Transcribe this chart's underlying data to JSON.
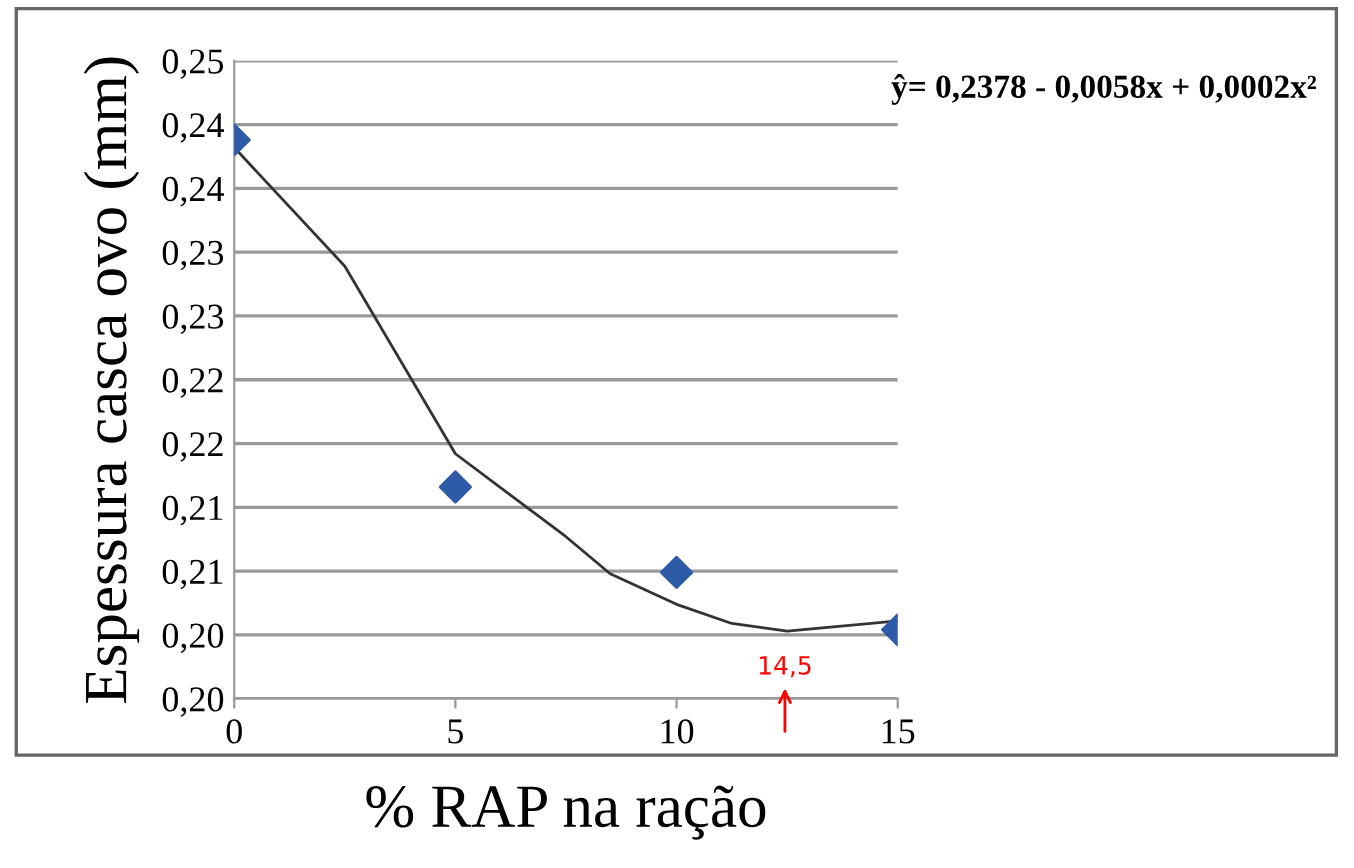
{
  "chart_data": {
    "type": "scatter",
    "xlabel": "% RAP na ração",
    "ylabel": "Espessura casca ovo (mm)",
    "xlim": [
      0,
      15
    ],
    "xticks": [
      0,
      5,
      10,
      15
    ],
    "ylim": [
      0.2,
      0.25
    ],
    "yticks": [
      {
        "value": 0.2,
        "label": "0,20"
      },
      {
        "value": 0.205,
        "label": "0,20"
      },
      {
        "value": 0.21,
        "label": "0,21"
      },
      {
        "value": 0.215,
        "label": "0,21"
      },
      {
        "value": 0.22,
        "label": "0,22"
      },
      {
        "value": 0.225,
        "label": "0,22"
      },
      {
        "value": 0.23,
        "label": "0,23"
      },
      {
        "value": 0.235,
        "label": "0,23"
      },
      {
        "value": 0.24,
        "label": "0,24"
      },
      {
        "value": 0.245,
        "label": "0,24"
      },
      {
        "value": 0.25,
        "label": "0,25"
      }
    ],
    "grid": "y",
    "legend": false,
    "series": [
      {
        "color": "#2e5ba8",
        "marker": "diamond",
        "x": [
          0,
          5,
          10,
          15
        ],
        "values": [
          0.2438,
          0.2166,
          0.2099,
          0.2054
        ]
      },
      {
        "type": "line",
        "color": "#333333",
        "marker": "none",
        "line_style": "solid",
        "x": [
          0,
          2.5,
          5,
          7.5,
          8.5,
          10,
          11.25,
          12.5,
          15
        ],
        "values": [
          0.2432,
          0.2339,
          0.2192,
          0.2127,
          0.2098,
          0.2074,
          0.2059,
          0.2053,
          0.2061
        ]
      }
    ],
    "annotations": [
      "ŷ= 0,2378 - 0,0058x + 0,0002x²",
      "14,5"
    ]
  }
}
